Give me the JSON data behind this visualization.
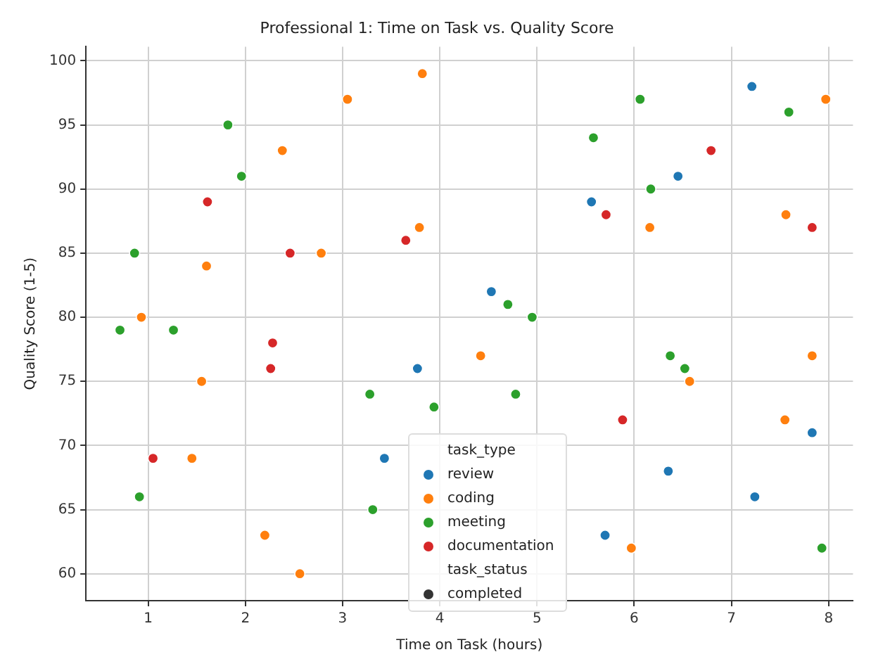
{
  "chart_data": {
    "type": "scatter",
    "title": "Professional 1: Time on Task vs. Quality Score",
    "xlabel": "Time on Task (hours)",
    "ylabel": "Quality Score (1-5)",
    "legend_title": "task_type",
    "annotations": [
      "task_status"
    ],
    "series": [
      {
        "name": "review",
        "color": "#1f77b4",
        "x": [
          7.21,
          6.45,
          5.56,
          4.53,
          3.77,
          3.43,
          6.35,
          5.7,
          7.24,
          7.83
        ],
        "values": [
          98,
          91,
          89,
          82,
          76,
          69,
          68,
          63,
          66,
          71
        ]
      },
      {
        "name": "coding",
        "color": "#ff7f0e",
        "x": [
          3.82,
          3.05,
          2.38,
          3.79,
          2.78,
          1.6,
          0.93,
          1.55,
          1.45,
          2.2,
          2.56,
          7.97,
          6.16,
          7.56,
          4.42,
          7.83,
          6.57,
          7.55,
          5.97
        ],
        "values": [
          99,
          97,
          93,
          87,
          85,
          84,
          80,
          75,
          69,
          63,
          60,
          97,
          87,
          88,
          77,
          77,
          75,
          72,
          62
        ]
      },
      {
        "name": "meeting",
        "color": "#2ca02c",
        "x": [
          1.82,
          1.96,
          0.86,
          0.71,
          1.26,
          0.91,
          3.28,
          3.31,
          3.94,
          6.06,
          7.59,
          5.58,
          6.17,
          4.7,
          4.95,
          6.37,
          6.52,
          4.78,
          7.93
        ],
        "values": [
          95,
          91,
          85,
          79,
          79,
          66,
          74,
          65,
          73,
          97,
          96,
          94,
          90,
          81,
          80,
          77,
          76,
          74,
          62
        ]
      },
      {
        "name": "documentation",
        "color": "#d62728",
        "x": [
          1.61,
          3.65,
          2.46,
          2.28,
          2.26,
          1.05,
          6.79,
          5.71,
          7.83,
          5.88
        ],
        "values": [
          89,
          86,
          85,
          78,
          76,
          69,
          93,
          88,
          87,
          72
        ]
      },
      {
        "name": "completed",
        "color": "#333333"
      }
    ],
    "xlim": [
      0.36,
      8.25
    ],
    "ylim": [
      57.9,
      101.1
    ],
    "xticks": [
      1,
      2,
      3,
      4,
      5,
      6,
      7,
      8
    ],
    "yticks": [
      60,
      65,
      70,
      75,
      80,
      85,
      90,
      95,
      100
    ],
    "grid": true,
    "legend": "bottom",
    "marker": "circle"
  }
}
